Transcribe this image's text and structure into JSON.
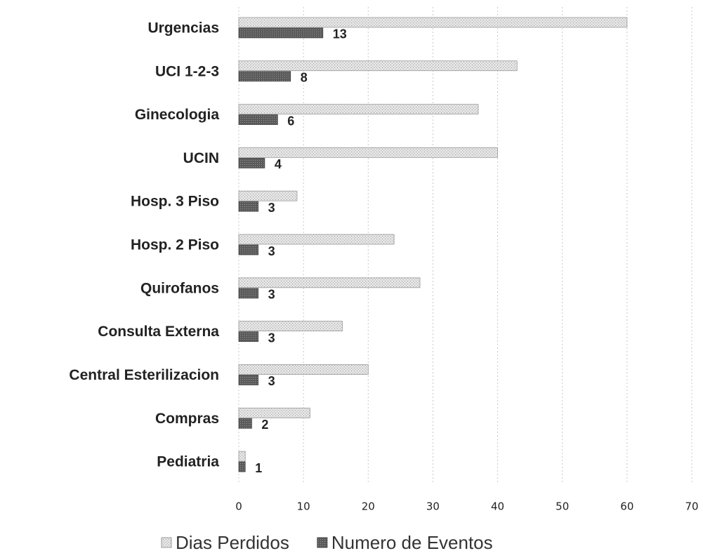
{
  "chart_data": {
    "type": "bar",
    "orientation": "horizontal",
    "categories": [
      "Urgencias",
      "UCI 1-2-3",
      "Ginecologia",
      "UCIN",
      "Hosp. 3 Piso",
      "Hosp. 2 Piso",
      "Quirofanos",
      "Consulta Externa",
      "Central Esterilizacion",
      "Compras",
      "Pediatria"
    ],
    "series": [
      {
        "name": "Dias Perdidos",
        "color": "#d4d4d4",
        "values": [
          60,
          43,
          37,
          40,
          9,
          24,
          28,
          16,
          20,
          11,
          1
        ]
      },
      {
        "name": "Numero de Eventos",
        "color": "#6a6a6a",
        "values": [
          13,
          8,
          6,
          4,
          3,
          3,
          3,
          3,
          3,
          2,
          1
        ],
        "data_labels": true
      }
    ],
    "xlim": [
      0,
      70
    ],
    "xticks": [
      0,
      10,
      20,
      30,
      40,
      50,
      60,
      70
    ],
    "grid": true,
    "legend": "bottom"
  }
}
